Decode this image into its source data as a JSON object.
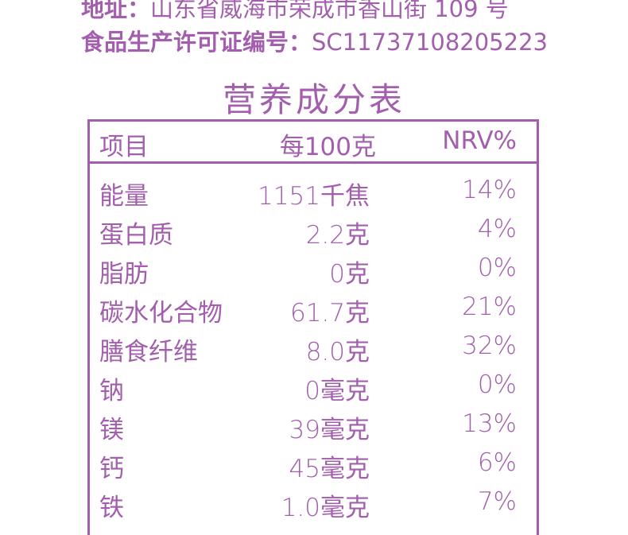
{
  "address": {
    "label": "地址：",
    "value": "山东省威海市荣成市香山街 109 号"
  },
  "license": {
    "label": "食品生产许可证编号：",
    "value": "SC11737108205223"
  },
  "title": "营养成分表",
  "table": {
    "headers": [
      "项目",
      "每100克",
      "NRV%"
    ],
    "rows": [
      [
        "能量",
        "1151千焦",
        "14%"
      ],
      [
        "蛋白质",
        "2.2克",
        "4%"
      ],
      [
        "脂肪",
        "0克",
        "0%"
      ],
      [
        "碳水化合物",
        "61.7克",
        "21%"
      ],
      [
        "膳食纤维",
        "8.0克",
        "32%"
      ],
      [
        "钠",
        "0毫克",
        "0%"
      ],
      [
        "镁",
        "39毫克",
        "13%"
      ],
      [
        "钙",
        "45毫克",
        "6%"
      ],
      [
        "铁",
        "1.0毫克",
        "7%"
      ]
    ]
  },
  "colors": {
    "accent": "#a35fae"
  }
}
